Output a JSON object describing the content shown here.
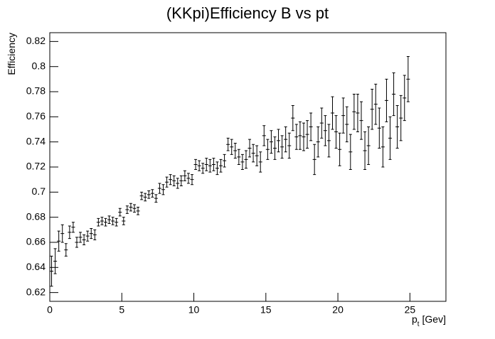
{
  "chart_data": {
    "type": "errorbar",
    "title": "(KKpi)Efficiency B vs pt",
    "ylabel": "Efficiency",
    "xlabel": {
      "main": "p",
      "sub": "t",
      "unit": "[Gev]"
    },
    "color": "#000000",
    "xlim": [
      0,
      27.5
    ],
    "ylim": [
      0.613,
      0.827
    ],
    "xticks": [
      0,
      5,
      10,
      15,
      20,
      25
    ],
    "yticks": [
      0.62,
      0.64,
      0.66,
      0.68,
      0.7,
      0.72,
      0.74,
      0.76,
      0.78,
      0.8,
      0.82
    ],
    "x": [
      0.125,
      0.375,
      0.625,
      0.875,
      1.125,
      1.375,
      1.625,
      1.875,
      2.125,
      2.375,
      2.625,
      2.875,
      3.125,
      3.375,
      3.625,
      3.875,
      4.125,
      4.375,
      4.625,
      4.875,
      5.125,
      5.375,
      5.625,
      5.875,
      6.125,
      6.375,
      6.625,
      6.875,
      7.125,
      7.375,
      7.625,
      7.875,
      8.125,
      8.375,
      8.625,
      8.875,
      9.125,
      9.375,
      9.625,
      9.875,
      10.125,
      10.375,
      10.625,
      10.875,
      11.125,
      11.375,
      11.625,
      11.875,
      12.125,
      12.375,
      12.625,
      12.875,
      13.125,
      13.375,
      13.625,
      13.875,
      14.125,
      14.375,
      14.625,
      14.875,
      15.125,
      15.375,
      15.625,
      15.875,
      16.125,
      16.375,
      16.625,
      16.875,
      17.125,
      17.375,
      17.625,
      17.875,
      18.125,
      18.375,
      18.625,
      18.875,
      19.125,
      19.375,
      19.625,
      19.875,
      20.125,
      20.375,
      20.625,
      20.875,
      21.125,
      21.375,
      21.625,
      21.875,
      22.125,
      22.375,
      22.625,
      22.875,
      23.125,
      23.375,
      23.625,
      23.875,
      24.125,
      24.375,
      24.625,
      24.875
    ],
    "values": [
      0.637,
      0.645,
      0.661,
      0.667,
      0.654,
      0.668,
      0.672,
      0.66,
      0.664,
      0.662,
      0.665,
      0.667,
      0.666,
      0.676,
      0.677,
      0.676,
      0.678,
      0.677,
      0.676,
      0.684,
      0.677,
      0.686,
      0.688,
      0.687,
      0.685,
      0.697,
      0.696,
      0.698,
      0.699,
      0.695,
      0.703,
      0.702,
      0.708,
      0.71,
      0.709,
      0.707,
      0.709,
      0.713,
      0.711,
      0.71,
      0.722,
      0.721,
      0.719,
      0.722,
      0.721,
      0.722,
      0.719,
      0.721,
      0.725,
      0.738,
      0.736,
      0.733,
      0.728,
      0.724,
      0.726,
      0.735,
      0.731,
      0.729,
      0.724,
      0.745,
      0.734,
      0.74,
      0.735,
      0.741,
      0.736,
      0.742,
      0.737,
      0.759,
      0.744,
      0.745,
      0.744,
      0.746,
      0.752,
      0.726,
      0.74,
      0.755,
      0.749,
      0.741,
      0.763,
      0.748,
      0.734,
      0.761,
      0.754,
      0.732,
      0.764,
      0.763,
      0.757,
      0.733,
      0.737,
      0.766,
      0.77,
      0.751,
      0.736,
      0.773,
      0.743,
      0.778,
      0.752,
      0.759,
      0.775,
      0.79
    ],
    "errors": [
      0.012,
      0.01,
      0.008,
      0.007,
      0.005,
      0.005,
      0.004,
      0.004,
      0.004,
      0.004,
      0.004,
      0.004,
      0.004,
      0.003,
      0.003,
      0.003,
      0.003,
      0.003,
      0.003,
      0.003,
      0.003,
      0.003,
      0.003,
      0.003,
      0.003,
      0.003,
      0.003,
      0.003,
      0.003,
      0.003,
      0.004,
      0.004,
      0.004,
      0.004,
      0.004,
      0.004,
      0.004,
      0.004,
      0.004,
      0.004,
      0.004,
      0.004,
      0.004,
      0.005,
      0.005,
      0.005,
      0.005,
      0.005,
      0.005,
      0.005,
      0.006,
      0.006,
      0.006,
      0.006,
      0.007,
      0.007,
      0.007,
      0.008,
      0.008,
      0.008,
      0.008,
      0.009,
      0.009,
      0.009,
      0.009,
      0.01,
      0.01,
      0.01,
      0.01,
      0.011,
      0.011,
      0.011,
      0.011,
      0.012,
      0.012,
      0.012,
      0.012,
      0.013,
      0.013,
      0.013,
      0.013,
      0.014,
      0.014,
      0.014,
      0.014,
      0.015,
      0.015,
      0.015,
      0.015,
      0.016,
      0.016,
      0.016,
      0.016,
      0.017,
      0.017,
      0.017,
      0.017,
      0.018,
      0.018,
      0.018
    ]
  }
}
